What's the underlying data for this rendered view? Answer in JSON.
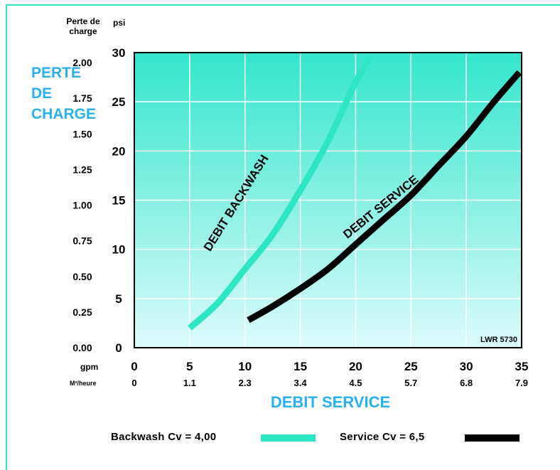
{
  "left_axis": {
    "title": "PERTE\nDE\nCHARGE",
    "unit": "Perte de charge",
    "ticks": [
      "0.00",
      "0.25",
      "0.50",
      "0.75",
      "1.00",
      "1.25",
      "1.50",
      "1.75",
      "2.00"
    ]
  },
  "right_axis": {
    "unit": "psi"
  },
  "x_axis": {
    "row1_label": "gpm",
    "row2_label": "M³/heure",
    "row2_ticks": [
      "0",
      "1.1",
      "2.3",
      "3.4",
      "4.5",
      "5.7",
      "6.8",
      "7.9"
    ],
    "title": "DEBIT SERVICE"
  },
  "corner_code": "LWR 5730",
  "legend": [
    {
      "label": "Backwash Cv = 4,00",
      "color": "#2ee6c4"
    },
    {
      "label": "Service Cv = 6,5",
      "color": "#000000"
    }
  ],
  "colors": {
    "accent": "#29b0f0",
    "frame": "#2ee6c4",
    "grid": "#ffffff",
    "plot_top": "#33e6cc",
    "plot_bottom": "#dcfbfb"
  },
  "chart_data": {
    "type": "line",
    "xlabel": "DEBIT SERVICE",
    "ylabel": "PERTE DE CHARGE",
    "x_ticks": [
      0,
      5,
      10,
      15,
      20,
      25,
      30,
      35
    ],
    "y_ticks": [
      0,
      5,
      10,
      15,
      20,
      25,
      30
    ],
    "xlim": [
      0,
      35
    ],
    "ylim": [
      0,
      30
    ],
    "grid": true,
    "series": [
      {
        "name": "DEBIT BACKWASH",
        "color": "#2ee6c4",
        "x": [
          5.0,
          7.5,
          10.0,
          12.5,
          15.0,
          17.5,
          20.0,
          21.3
        ],
        "y": [
          2.0,
          4.5,
          8.0,
          11.5,
          16.0,
          21.0,
          27.0,
          29.5
        ]
      },
      {
        "name": "DEBIT SERVICE",
        "color": "#000000",
        "x": [
          10.3,
          12.5,
          15.0,
          17.5,
          20.0,
          22.5,
          25.0,
          27.5,
          30.0,
          32.5,
          34.8
        ],
        "y": [
          2.8,
          4.2,
          6.0,
          8.0,
          10.5,
          13.0,
          15.5,
          18.5,
          21.5,
          25.0,
          28.0
        ]
      }
    ]
  }
}
